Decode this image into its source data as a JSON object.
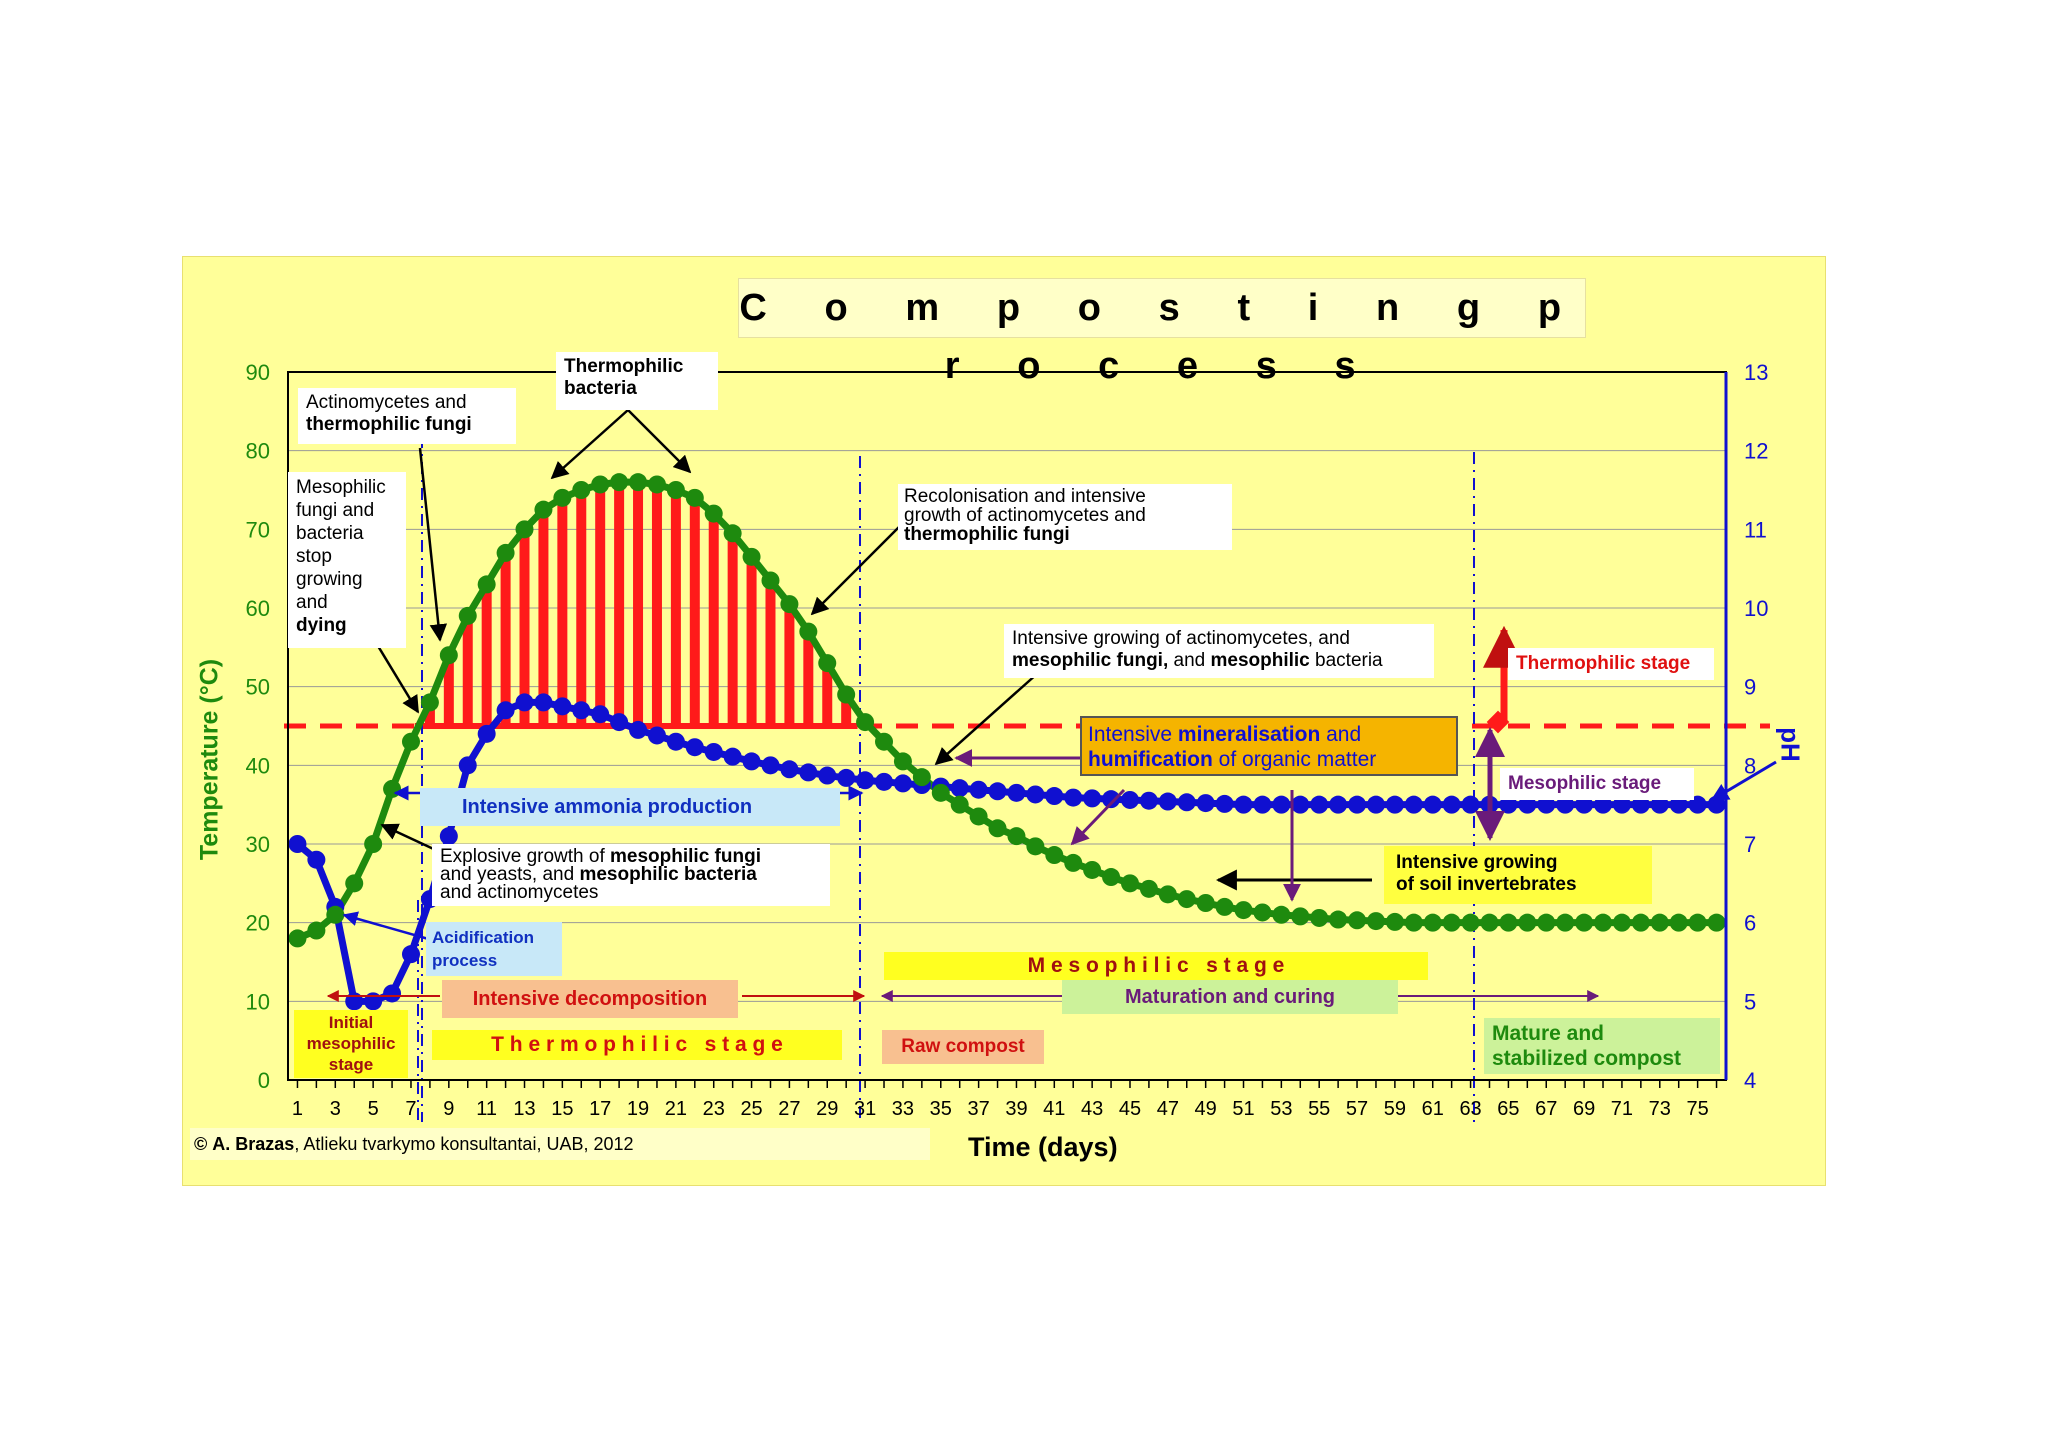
{
  "title": "C o m p o s t i n g   p r o c e s s",
  "credit_author": "A. Brazas",
  "credit_rest": ", Atlieku tvarkymo konsultantai, UAB, 2012",
  "credit_symbol": "©",
  "annotations": {
    "actino_1": "Actinomycetes and",
    "actino_2": "thermophilic fungi",
    "thermo_bacteria_1": "Thermophilic",
    "thermo_bacteria_2": "bacteria",
    "meso_dying_lines": [
      "Mesophilic",
      "fungi and",
      "bacteria",
      "stop",
      "growing",
      "and"
    ],
    "meso_dying_bold": "dying",
    "recolon_1": "Recolonisation and intensive",
    "recolon_2": "growth of  actinomycetes and",
    "recolon_3": "thermophilic  fungi",
    "intensive_grow_1": "Intensive growing of actinomycetes, and",
    "intensive_grow_2a": "mesophilic fungi,",
    "intensive_grow_2b": " and ",
    "intensive_grow_2c": "mesophilic",
    "intensive_grow_2d": " bacteria",
    "mineral_1a": "Intensive ",
    "mineral_1b": "mineralisation",
    "mineral_1c": " and",
    "mineral_2a": "humification",
    "mineral_2b": " of organic matter",
    "ammonia": "Intensive ammonia production",
    "explosive_1a": "Explosive growth of ",
    "explosive_1b": "mesophilic fungi",
    "explosive_2a": "and  yeasts, and ",
    "explosive_2b": "mesophilic bacteria",
    "explosive_3": "and  actinomycetes",
    "acidification_1": "Acidification",
    "acidification_2": "process",
    "soil_1": "Intensive growing",
    "soil_2": "of soil invertebrates",
    "thermophilic_stage_right": "Thermophilic stage",
    "mesophilic_stage_right": "Mesophilic stage",
    "intensive_decomposition": "Intensive decomposition",
    "initial_1": "Initial",
    "initial_2": "mesophilic",
    "initial_3": "stage",
    "thermophilic_stage_band": "T h e r m o p h i l i c   s t a g e",
    "mesophilic_stage_band": "M e s o p h i l i c   s t a g e",
    "maturation": "Maturation and curing",
    "raw_compost": "Raw compost",
    "mature_1": "Mature and",
    "mature_2": "stabilized compost"
  },
  "colors": {
    "temperature": "#1e8a0e",
    "ph": "#1010d0",
    "bars": "#ff1a1a",
    "threshold": "#ff1a1a",
    "panel": "#ffff99",
    "purple": "#6a1b7a"
  },
  "chart_data": {
    "type": "line",
    "xlabel": "Time (days)",
    "ylabel": "Temperature (°C)",
    "y2label": "pH",
    "x": [
      1,
      2,
      3,
      4,
      5,
      6,
      7,
      8,
      9,
      10,
      11,
      12,
      13,
      14,
      15,
      16,
      17,
      18,
      19,
      20,
      21,
      22,
      23,
      24,
      25,
      26,
      27,
      28,
      29,
      30,
      31,
      32,
      33,
      34,
      35,
      36,
      37,
      38,
      39,
      40,
      41,
      42,
      43,
      44,
      45,
      46,
      47,
      48,
      49,
      50,
      51,
      52,
      53,
      54,
      55,
      56,
      57,
      58,
      59,
      60,
      61,
      62,
      63,
      64,
      65,
      66,
      67,
      68,
      69,
      70,
      71,
      72,
      73,
      74,
      75,
      76
    ],
    "xticks": [
      1,
      3,
      5,
      7,
      9,
      11,
      13,
      15,
      17,
      19,
      21,
      23,
      25,
      27,
      29,
      31,
      33,
      35,
      37,
      39,
      41,
      43,
      45,
      47,
      49,
      51,
      53,
      55,
      57,
      59,
      61,
      63,
      65,
      67,
      69,
      71,
      73,
      75
    ],
    "xlim": [
      0.5,
      76.5
    ],
    "ylim": [
      0,
      90
    ],
    "yticks": [
      0,
      10,
      20,
      30,
      40,
      50,
      60,
      70,
      80,
      90
    ],
    "y2lim": [
      4,
      13
    ],
    "y2ticks": [
      4,
      5,
      6,
      7,
      8,
      9,
      10,
      11,
      12,
      13
    ],
    "threshold": 45,
    "series": [
      {
        "axis": "left",
        "values": [
          18,
          19,
          21,
          25,
          30,
          37,
          43,
          48,
          54,
          59,
          63,
          67,
          70,
          72.5,
          74,
          75,
          75.7,
          76,
          76,
          75.7,
          75,
          74,
          72,
          69.5,
          66.5,
          63.5,
          60.5,
          57,
          53,
          49,
          45.5,
          43,
          40.5,
          38.5,
          36.5,
          35,
          33.5,
          32,
          31,
          29.7,
          28.6,
          27.6,
          26.7,
          25.8,
          25,
          24.3,
          23.6,
          23,
          22.5,
          22,
          21.6,
          21.3,
          21,
          20.8,
          20.6,
          20.4,
          20.3,
          20.2,
          20.1,
          20,
          20,
          20,
          20,
          20,
          20,
          20,
          20,
          20,
          20,
          20,
          20,
          20,
          20,
          20,
          20,
          20
        ]
      },
      {
        "axis": "right",
        "values": [
          7,
          6.8,
          6.2,
          5,
          5,
          5.1,
          5.6,
          6.3,
          7.1,
          8,
          8.4,
          8.7,
          8.8,
          8.8,
          8.75,
          8.7,
          8.65,
          8.55,
          8.45,
          8.38,
          8.3,
          8.23,
          8.17,
          8.11,
          8.05,
          8,
          7.95,
          7.91,
          7.87,
          7.84,
          7.81,
          7.79,
          7.77,
          7.75,
          7.73,
          7.71,
          7.69,
          7.67,
          7.65,
          7.63,
          7.61,
          7.59,
          7.58,
          7.57,
          7.56,
          7.55,
          7.54,
          7.53,
          7.52,
          7.51,
          7.5,
          7.5,
          7.5,
          7.5,
          7.5,
          7.5,
          7.5,
          7.5,
          7.5,
          7.5,
          7.5,
          7.5,
          7.5,
          7.5,
          7.5,
          7.5,
          7.5,
          7.5,
          7.5,
          7.5,
          7.5,
          7.5,
          7.5,
          7.5,
          7.5,
          7.5
        ]
      }
    ]
  }
}
